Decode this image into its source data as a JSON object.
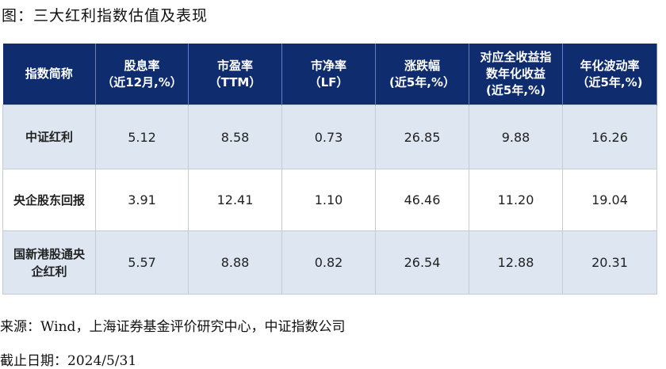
{
  "title": "图：三大红利指数估值及表现",
  "table": {
    "header": [
      [
        "指数简称"
      ],
      [
        "股息率",
        "（近12月,%）"
      ],
      [
        "市盈率",
        "（TTM）"
      ],
      [
        "市净率",
        "（LF）"
      ],
      [
        "涨跌幅",
        "(近5年,%）"
      ],
      [
        "对应全收益指",
        "数年化收益",
        "(近5年,%)"
      ],
      [
        "年化波动率",
        "（近5年,%)"
      ]
    ],
    "rows": [
      [
        [
          "中证红利"
        ],
        "5.12",
        "8.58",
        "0.73",
        "26.85",
        "9.88",
        "16.26"
      ],
      [
        [
          "央企股东回报"
        ],
        "3.91",
        "12.41",
        "1.10",
        "46.46",
        "11.20",
        "19.04"
      ],
      [
        [
          "国新港股通央",
          "企红利"
        ],
        "5.57",
        "8.88",
        "0.82",
        "26.54",
        "12.88",
        "20.31"
      ]
    ]
  },
  "source": "来源：Wind，上海证券基金评价研究中心，中证指数公司",
  "date": "截止日期：2024/5/31"
}
